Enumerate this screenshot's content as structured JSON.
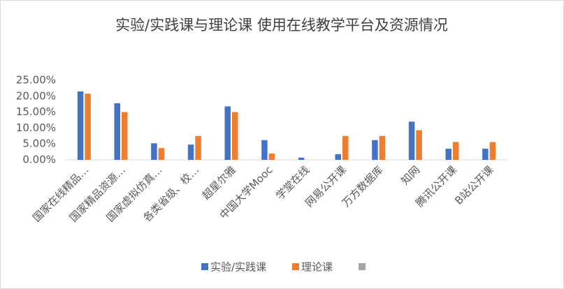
{
  "chart_data": {
    "type": "bar",
    "title": "实验/实践课与理论课 使用在线教学平台及资源情况",
    "categories": [
      "国家在线精品…",
      "国家精品资源…",
      "国家虚拟仿真…",
      "各类省级、校…",
      "超星尔雅",
      "中国大学Mooc",
      "学堂在线",
      "网易公开课",
      "万方数据库",
      "知网",
      "腾讯公开课",
      "B站公开课"
    ],
    "series": [
      {
        "name": "实验/实践课",
        "color": "#4472c4",
        "values": [
          21.5,
          17.8,
          5.2,
          4.8,
          16.8,
          6.2,
          0.7,
          1.8,
          6.2,
          12.0,
          3.5,
          3.5
        ]
      },
      {
        "name": "理论课",
        "color": "#ed7d31",
        "values": [
          20.8,
          15.0,
          3.7,
          7.5,
          15.0,
          2.0,
          0,
          7.5,
          7.5,
          9.3,
          5.6,
          5.6
        ]
      }
    ],
    "ylim": [
      0,
      25
    ],
    "yticks": [
      {
        "value": 0,
        "label": "0.00%"
      },
      {
        "value": 5,
        "label": "5.00%"
      },
      {
        "value": 10,
        "label": "10.00%"
      },
      {
        "value": 15,
        "label": "15.00%"
      },
      {
        "value": 20,
        "label": "20.00%"
      },
      {
        "value": 25,
        "label": "25.00%"
      }
    ],
    "grid": false,
    "legend": "bottom"
  }
}
